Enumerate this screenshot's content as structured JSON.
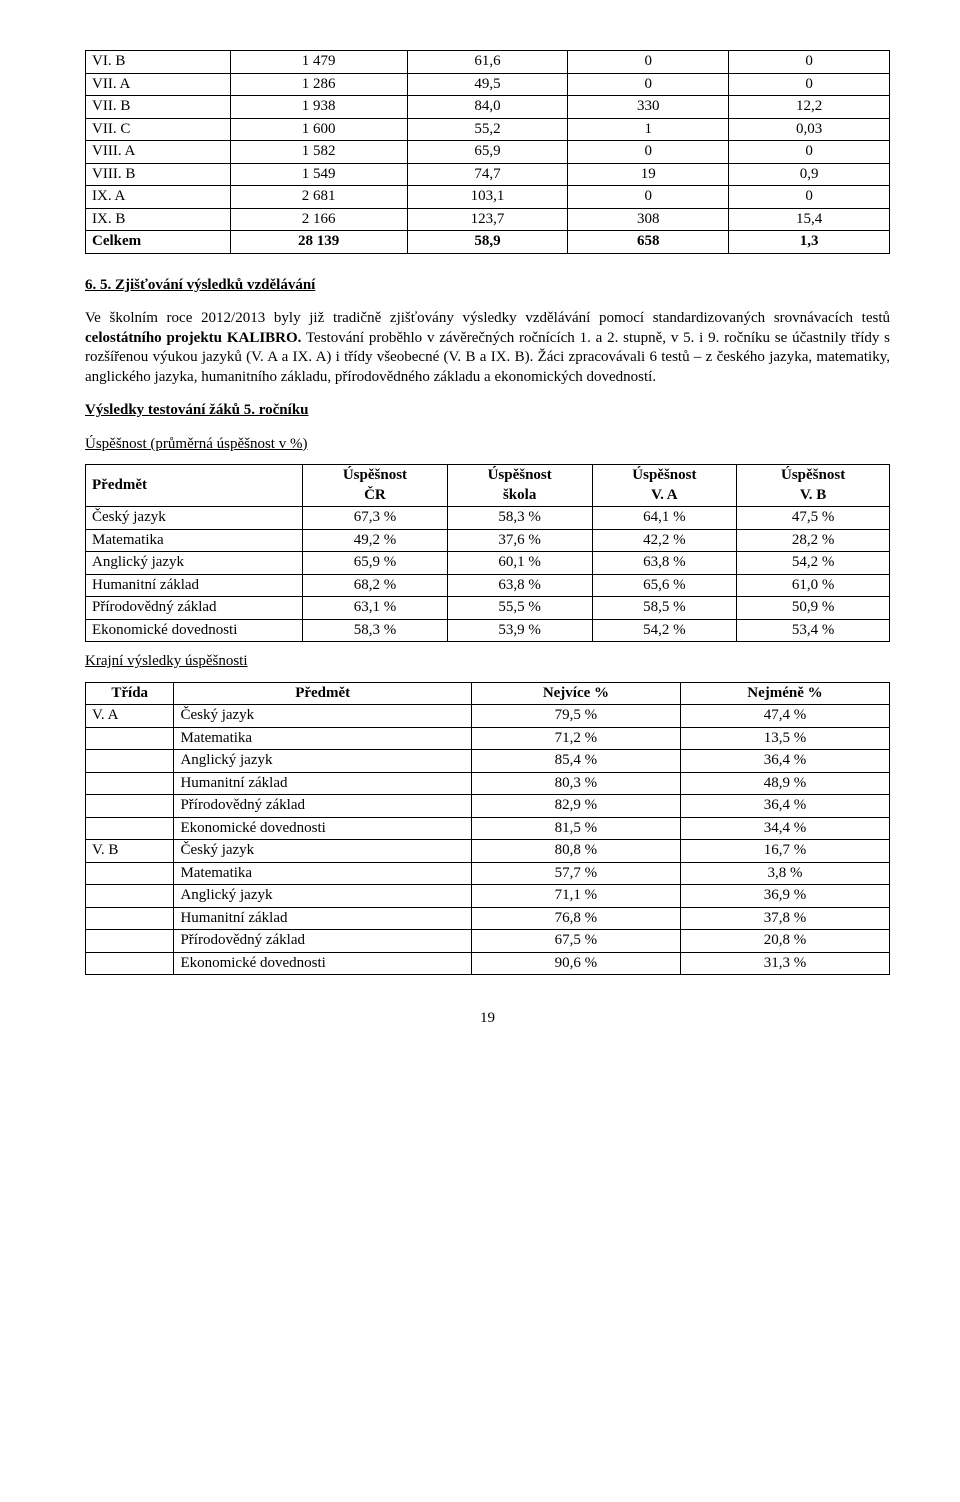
{
  "top_table": {
    "rows": [
      [
        "VI. B",
        "1 479",
        "61,6",
        "0",
        "0"
      ],
      [
        "VII. A",
        "1 286",
        "49,5",
        "0",
        "0"
      ],
      [
        "VII. B",
        "1 938",
        "84,0",
        "330",
        "12,2"
      ],
      [
        "VII. C",
        "1 600",
        "55,2",
        "1",
        "0,03"
      ],
      [
        "VIII. A",
        "1 582",
        "65,9",
        "0",
        "0"
      ],
      [
        "VIII. B",
        "1 549",
        "74,7",
        "19",
        "0,9"
      ],
      [
        "IX. A",
        "2 681",
        "103,1",
        "0",
        "0"
      ],
      [
        "IX. B",
        "2 166",
        "123,7",
        "308",
        "15,4"
      ],
      [
        "Celkem",
        "28 139",
        "58,9",
        "658",
        "1,3"
      ]
    ]
  },
  "section_heading": "6. 5.  Zjišťování výsledků vzdělávání",
  "paragraph": "Ve školním roce 2012/2013 byly již tradičně zjišťovány výsledky vzdělávání pomocí standardizovaných srovnávacích testů celostátního projektu KALIBRO. Testování proběhlo v závěrečných ročnících 1. a 2. stupně, v 5. i 9. ročníku se účastnily třídy s rozšířenou výukou jazyků (V. A a IX. A) i třídy všeobecné (V. B a IX. B). Žáci zpracovávali 6 testů – z českého jazyka, matematiky, anglického jazyka, humanitního základu, přírodovědného základu a ekonomických dovedností.",
  "results_heading": "Výsledky testování žáků 5. ročníku",
  "success_label": "Úspěšnost (průměrná úspěšnost v %)",
  "results_table": {
    "header": [
      "Předmět",
      "Úspěšnost ČR",
      "Úspěšnost škola",
      "Úspěšnost V. A",
      "Úspěšnost V. B"
    ],
    "header_top": [
      "Předmět",
      "Úspěšnost",
      "Úspěšnost",
      "Úspěšnost",
      "Úspěšnost"
    ],
    "header_bot": [
      "",
      "ČR",
      "škola",
      "V. A",
      "V. B"
    ],
    "rows": [
      [
        "Český jazyk",
        "67,3 %",
        "58,3 %",
        "64,1 %",
        "47,5 %"
      ],
      [
        "Matematika",
        "49,2 %",
        "37,6 %",
        "42,2 %",
        "28,2 %"
      ],
      [
        "Anglický jazyk",
        "65,9 %",
        "60,1 %",
        "63,8 %",
        "54,2 %"
      ],
      [
        "Humanitní základ",
        "68,2 %",
        "63,8 %",
        "65,6 %",
        "61,0 %"
      ],
      [
        "Přírodovědný základ",
        "63,1 %",
        "55,5 %",
        "58,5 %",
        "50,9 %"
      ],
      [
        "Ekonomické dovednosti",
        "58,3 %",
        "53,9 %",
        "54,2 %",
        "53,4 %"
      ]
    ]
  },
  "extremes_label": "Krajní výsledky úspěšnosti",
  "extremes_table": {
    "header": [
      "Třída",
      "Předmět",
      "Nejvíce %",
      "Nejméně %"
    ],
    "rows": [
      [
        "V. A",
        "Český jazyk",
        "79,5 %",
        "47,4 %"
      ],
      [
        "",
        "Matematika",
        "71,2 %",
        "13,5 %"
      ],
      [
        "",
        "Anglický jazyk",
        "85,4 %",
        "36,4 %"
      ],
      [
        "",
        "Humanitní základ",
        "80,3 %",
        "48,9 %"
      ],
      [
        "",
        "Přírodovědný základ",
        "82,9 %",
        "36,4 %"
      ],
      [
        "",
        "Ekonomické dovednosti",
        "81,5 %",
        "34,4 %"
      ],
      [
        "V. B",
        "Český jazyk",
        "80,8 %",
        "16,7 %"
      ],
      [
        "",
        "Matematika",
        "57,7 %",
        "3,8 %"
      ],
      [
        "",
        "Anglický jazyk",
        "71,1 %",
        "36,9 %"
      ],
      [
        "",
        "Humanitní základ",
        "76,8 %",
        "37,8 %"
      ],
      [
        "",
        "Přírodovědný základ",
        "67,5 %",
        "20,8 %"
      ],
      [
        "",
        "Ekonomické dovednosti",
        "90,6 %",
        "31,3 %"
      ]
    ]
  },
  "page_number": "19"
}
